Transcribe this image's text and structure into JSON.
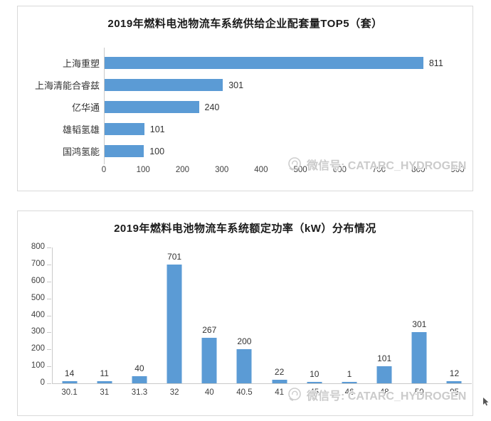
{
  "watermark": {
    "text": "微信号: CATARC_HYDROGEN",
    "icon": "wechat-swirl-icon",
    "color": "#cbcbcb"
  },
  "colors": {
    "bar": "#5b9bd5",
    "panel_border": "#d9d9d9",
    "axis": "#c9c9c9",
    "label_text": "#333333",
    "tick_text": "#3f3f3f"
  },
  "chart_data": [
    {
      "type": "bar",
      "orientation": "horizontal",
      "title": "2019年燃料电池物流车系统供给企业配套量TOP5（套）",
      "categories": [
        "上海重塑",
        "上海清能合睿兹",
        "亿华通",
        "雄韬氢雄",
        "国鸿氢能"
      ],
      "values": [
        811,
        301,
        240,
        101,
        100
      ],
      "xlim": [
        0,
        900
      ],
      "xticks": [
        0,
        100,
        200,
        300,
        400,
        500,
        600,
        700,
        800,
        900
      ],
      "data_labels": true,
      "legend": false,
      "grid": false
    },
    {
      "type": "bar",
      "orientation": "vertical",
      "title": "2019年燃料电池物流车系统额定功率（kW）分布情况",
      "categories": [
        "30.1",
        "31",
        "31.3",
        "32",
        "40",
        "40.5",
        "41",
        "45",
        "46",
        "48",
        "50",
        "95"
      ],
      "values": [
        14,
        11,
        40,
        701,
        267,
        200,
        22,
        10,
        1,
        101,
        301,
        12
      ],
      "ylim": [
        0,
        800
      ],
      "yticks": [
        0,
        100,
        200,
        300,
        400,
        500,
        600,
        700,
        800
      ],
      "data_labels": true,
      "legend": false,
      "grid": false
    }
  ]
}
